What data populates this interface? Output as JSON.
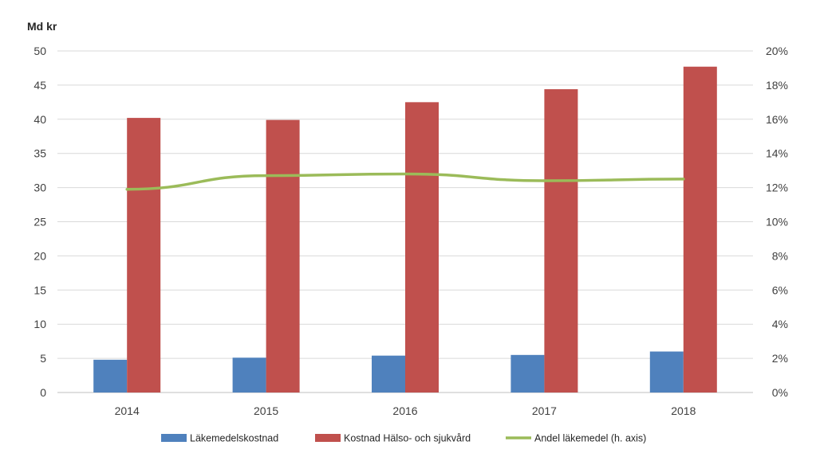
{
  "chart_data": {
    "type": "bar",
    "ylabel": "Md kr",
    "categories": [
      "2014",
      "2015",
      "2016",
      "2017",
      "2018"
    ],
    "ylim": [
      0,
      50
    ],
    "y_ticks": [
      "0",
      "5",
      "10",
      "15",
      "20",
      "25",
      "30",
      "35",
      "40",
      "45",
      "50"
    ],
    "y2lim": [
      0,
      0.2
    ],
    "y2_ticks": [
      "0%",
      "2%",
      "4%",
      "6%",
      "8%",
      "10%",
      "12%",
      "14%",
      "16%",
      "18%",
      "20%"
    ],
    "grid": true,
    "legend_position": "bottom",
    "series": [
      {
        "name": "Läkemedelskostnad",
        "type": "bar",
        "axis": "left",
        "color": "#4F81BD",
        "values": [
          4.8,
          5.1,
          5.4,
          5.5,
          6.0
        ]
      },
      {
        "name": "Kostnad Hälso- och sjukvård",
        "type": "bar",
        "axis": "left",
        "color": "#C0504D",
        "values": [
          40.2,
          39.9,
          42.5,
          44.4,
          47.7
        ]
      },
      {
        "name": "Andel läkemedel (h. axis)",
        "type": "line",
        "axis": "right",
        "color": "#9BBB59",
        "values": [
          0.119,
          0.127,
          0.128,
          0.124,
          0.125
        ]
      }
    ]
  }
}
